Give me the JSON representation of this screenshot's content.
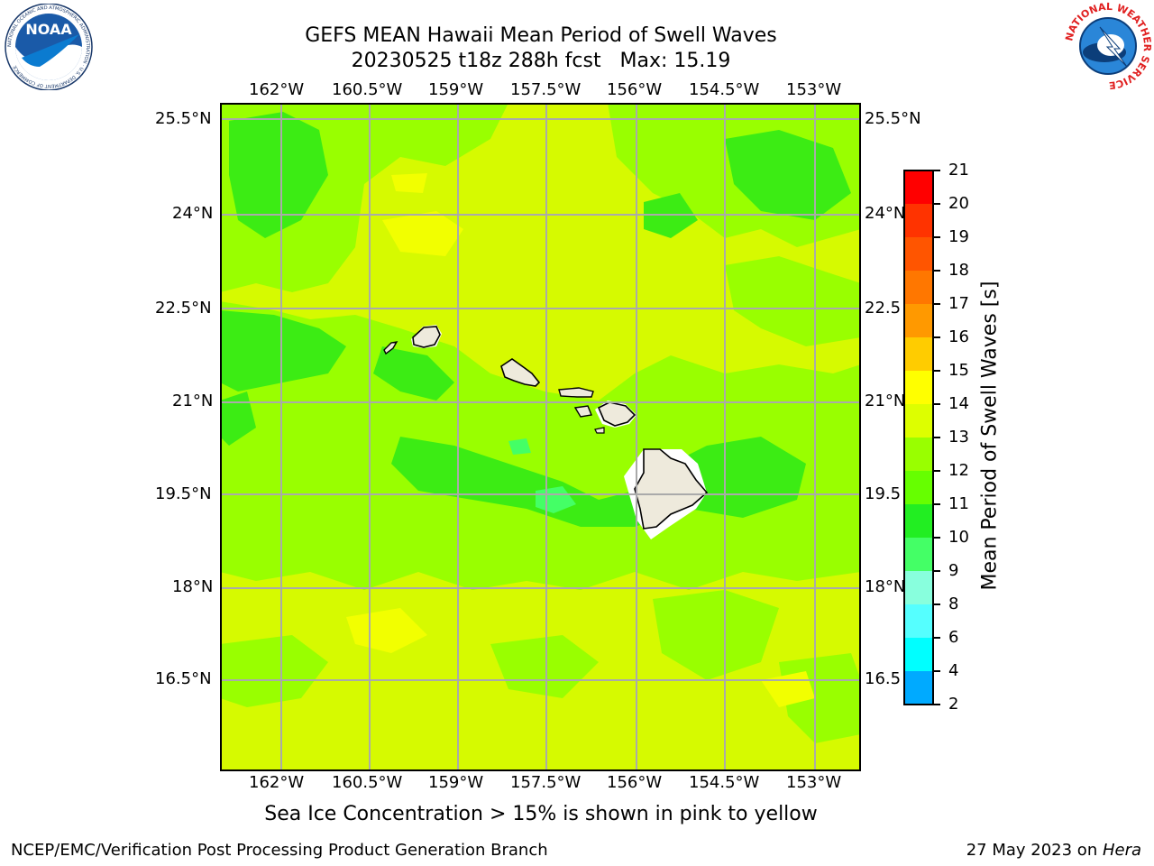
{
  "header": {
    "title_line1": "GEFS MEAN Hawaii Mean Period of Swell Waves",
    "title_line2": "20230525 t18z 288h fcst   Max: 15.19"
  },
  "logos": {
    "left": "NOAA",
    "left_ring_text": "NATIONAL OCEANIC AND ATMOSPHERIC ADMINISTRATION · U.S. DEPARTMENT OF COMMERCE",
    "right_ring_text": "NATIONAL WEATHER SERVICE"
  },
  "map": {
    "lon_labels": [
      "162°W",
      "160.5°W",
      "159°W",
      "157.5°W",
      "156°W",
      "154.5°W",
      "153°W"
    ],
    "lat_labels_left": [
      "25.5°N",
      "24°N",
      "22.5°N",
      "21°N",
      "19.5°N",
      "18°N",
      "16.5°N"
    ],
    "lat_labels_right": [
      "25.5°N",
      "24°N",
      "22.5",
      "21°N",
      "19.5",
      "18°N",
      "16.5"
    ]
  },
  "colorbar": {
    "label": "Mean Period of Swell Waves [s]",
    "ticks": [
      "21",
      "20",
      "19",
      "18",
      "17",
      "16",
      "15",
      "14",
      "13",
      "12",
      "11",
      "10",
      "9",
      "8",
      "6",
      "4",
      "2"
    ],
    "colors": [
      "#ff0000",
      "#ff3300",
      "#ff5500",
      "#ff7700",
      "#ff9900",
      "#ffcc00",
      "#ffff00",
      "#ddff00",
      "#99ff00",
      "#66ff00",
      "#22ee22",
      "#44ff66",
      "#88ffdd",
      "#55ffff",
      "#00ffff",
      "#00aaff",
      "#0066ff",
      "#0000ff"
    ]
  },
  "caption": "Sea Ice Concentration > 15% is shown in pink to yellow",
  "footer": {
    "left": "NCEP/EMC/Verification Post Processing Product Generation Branch",
    "right_prefix": "27 May 2023 on ",
    "right_host": "Hera"
  }
}
